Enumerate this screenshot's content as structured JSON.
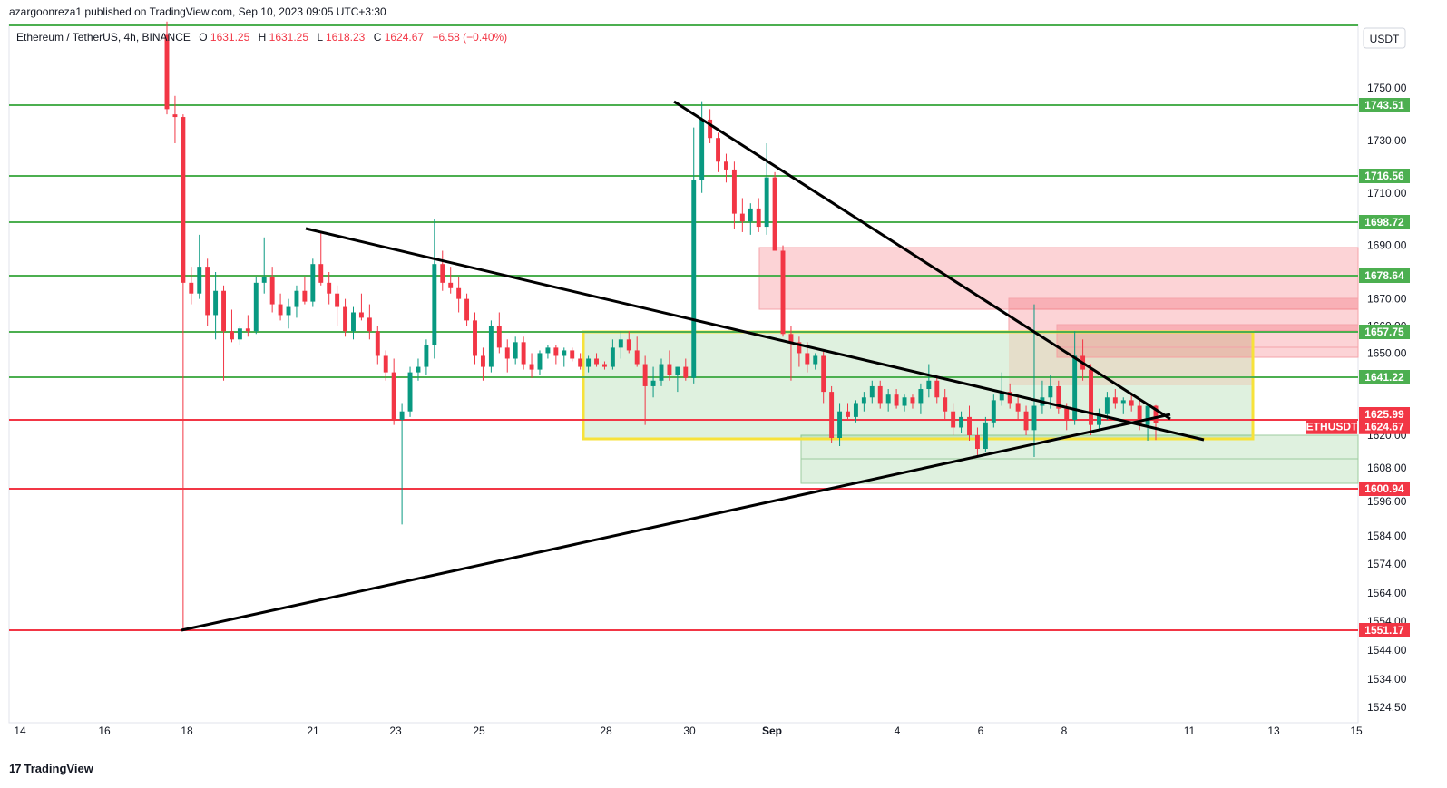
{
  "header": {
    "published_by": "azargoonreza1 published on TradingView.com, Sep 10, 2023 09:05 UTC+3:30"
  },
  "footer": {
    "brand": "TradingView"
  },
  "legend": {
    "symbol": "Ethereum / TetherUS, 4h, BINANCE",
    "o_label": "O",
    "o_value": "1631.25",
    "h_label": "H",
    "h_value": "1631.25",
    "l_label": "L",
    "l_value": "1618.23",
    "c_label": "C",
    "c_value": "1624.67",
    "change": "−6.58 (−0.40%)"
  },
  "currency_button": "USDT",
  "colors": {
    "green_line": "#4caf50",
    "red_line": "#f23645",
    "up_candle": "#089981",
    "down_candle": "#f23645",
    "yellow_box": "#f7e23a",
    "green_zone": "rgba(76,175,80,0.18)",
    "red_zone": "rgba(242,54,69,0.22)"
  },
  "chart_data": {
    "type": "candlestick",
    "title": "Ethereum / TetherUS, 4h, BINANCE",
    "y_axis": {
      "ticks": [
        1750,
        1730,
        1710,
        1690,
        1670,
        1660,
        1650,
        1620,
        1608,
        1596,
        1584,
        1574,
        1564,
        1554,
        1544,
        1534,
        1524.5
      ],
      "tick_labels": [
        "1750.00",
        "1730.00",
        "1710.00",
        "1690.00",
        "1670.00",
        "1660.00",
        "1650.00",
        "1620.00",
        "1608.00",
        "1596.00",
        "1584.00",
        "1574.00",
        "1564.00",
        "1554.00",
        "1544.00",
        "1534.00",
        "1524.50"
      ]
    },
    "x_axis": {
      "tick_labels": [
        "14",
        "16",
        "18",
        "21",
        "23",
        "25",
        "28",
        "30",
        "Sep",
        "4",
        "6",
        "8",
        "11",
        "13",
        "15"
      ]
    },
    "horizontal_levels": [
      {
        "value": 1743.51,
        "label": "1743.51",
        "color": "green"
      },
      {
        "value": 1716.56,
        "label": "1716.56",
        "color": "green"
      },
      {
        "value": 1698.72,
        "label": "1698.72",
        "color": "green"
      },
      {
        "value": 1678.64,
        "label": "1678.64",
        "color": "green"
      },
      {
        "value": 1657.75,
        "label": "1657.75",
        "color": "green"
      },
      {
        "value": 1641.22,
        "label": "1641.22",
        "color": "green"
      },
      {
        "value": 1625.99,
        "label": "1625.99",
        "color": "red"
      },
      {
        "value": 1600.94,
        "label": "1600.94",
        "color": "red"
      },
      {
        "value": 1551.17,
        "label": "1551.17",
        "color": "red"
      }
    ],
    "last_price": {
      "value": 1624.67,
      "label": "1624.67",
      "symbol": "ETHUSDT"
    },
    "candles": [
      [
        1770,
        1775,
        1740,
        1742
      ],
      [
        1740,
        1747,
        1729,
        1739
      ],
      [
        1739,
        1740,
        1551,
        1676
      ],
      [
        1676,
        1682,
        1668,
        1672
      ],
      [
        1672,
        1694,
        1670,
        1682
      ],
      [
        1682,
        1685,
        1660,
        1664
      ],
      [
        1664,
        1680,
        1655,
        1673
      ],
      [
        1673,
        1675,
        1640,
        1658
      ],
      [
        1658,
        1666,
        1654,
        1655
      ],
      [
        1655,
        1660,
        1653,
        1659
      ],
      [
        1659,
        1664,
        1656,
        1658
      ],
      [
        1658,
        1678,
        1657,
        1676
      ],
      [
        1676,
        1693,
        1672,
        1678
      ],
      [
        1678,
        1682,
        1665,
        1668
      ],
      [
        1668,
        1672,
        1662,
        1664
      ],
      [
        1664,
        1670,
        1659,
        1667
      ],
      [
        1667,
        1675,
        1663,
        1673
      ],
      [
        1673,
        1678,
        1668,
        1669
      ],
      [
        1669,
        1685,
        1667,
        1683
      ],
      [
        1683,
        1695,
        1675,
        1676
      ],
      [
        1676,
        1680,
        1668,
        1672
      ],
      [
        1672,
        1675,
        1660,
        1667
      ],
      [
        1667,
        1670,
        1656,
        1658
      ],
      [
        1658,
        1667,
        1655,
        1665
      ],
      [
        1665,
        1672,
        1662,
        1663
      ],
      [
        1663,
        1668,
        1655,
        1658
      ],
      [
        1658,
        1660,
        1646,
        1649
      ],
      [
        1649,
        1651,
        1640,
        1643
      ],
      [
        1643,
        1648,
        1624,
        1626
      ],
      [
        1626,
        1632,
        1588,
        1629
      ],
      [
        1629,
        1645,
        1627,
        1643
      ],
      [
        1643,
        1648,
        1640,
        1645
      ],
      [
        1645,
        1655,
        1642,
        1653
      ],
      [
        1653,
        1700,
        1648,
        1683
      ],
      [
        1683,
        1688,
        1673,
        1676
      ],
      [
        1676,
        1682,
        1672,
        1674
      ],
      [
        1674,
        1678,
        1665,
        1670
      ],
      [
        1670,
        1672,
        1660,
        1662
      ],
      [
        1662,
        1665,
        1646,
        1649
      ],
      [
        1649,
        1652,
        1640,
        1645
      ],
      [
        1645,
        1662,
        1643,
        1660
      ],
      [
        1660,
        1665,
        1650,
        1652
      ],
      [
        1652,
        1655,
        1643,
        1648
      ],
      [
        1648,
        1656,
        1646,
        1654
      ],
      [
        1654,
        1656,
        1644,
        1646
      ],
      [
        1646,
        1650,
        1641,
        1644
      ],
      [
        1644,
        1651,
        1642,
        1650
      ],
      [
        1650,
        1653,
        1648,
        1652
      ],
      [
        1652,
        1653,
        1646,
        1649
      ],
      [
        1649,
        1652,
        1645,
        1651
      ],
      [
        1651,
        1652,
        1647,
        1648
      ],
      [
        1648,
        1650,
        1644,
        1645
      ],
      [
        1645,
        1649,
        1643,
        1648
      ],
      [
        1648,
        1650,
        1645,
        1646
      ],
      [
        1646,
        1647,
        1644,
        1645
      ],
      [
        1645,
        1655,
        1644,
        1652
      ],
      [
        1652,
        1658,
        1648,
        1655
      ],
      [
        1655,
        1658,
        1650,
        1651
      ],
      [
        1651,
        1656,
        1645,
        1646
      ],
      [
        1646,
        1649,
        1624,
        1638
      ],
      [
        1638,
        1645,
        1634,
        1640
      ],
      [
        1640,
        1648,
        1638,
        1646
      ],
      [
        1646,
        1651,
        1640,
        1642
      ],
      [
        1642,
        1645,
        1636,
        1645
      ],
      [
        1645,
        1648,
        1640,
        1641
      ],
      [
        1641,
        1735,
        1639,
        1715
      ],
      [
        1715,
        1745,
        1710,
        1738
      ],
      [
        1738,
        1742,
        1729,
        1731
      ],
      [
        1731,
        1733,
        1718,
        1722
      ],
      [
        1722,
        1725,
        1714,
        1719
      ],
      [
        1719,
        1722,
        1696,
        1702
      ],
      [
        1702,
        1708,
        1695,
        1699
      ],
      [
        1699,
        1706,
        1694,
        1704
      ],
      [
        1704,
        1708,
        1695,
        1697
      ],
      [
        1697,
        1729,
        1694,
        1716
      ],
      [
        1716,
        1718,
        1690,
        1688
      ],
      [
        1688,
        1690,
        1656,
        1657
      ],
      [
        1657,
        1660,
        1640,
        1654
      ],
      [
        1654,
        1656,
        1645,
        1650
      ],
      [
        1650,
        1654,
        1643,
        1646
      ],
      [
        1646,
        1650,
        1644,
        1649
      ],
      [
        1649,
        1651,
        1632,
        1636
      ],
      [
        1636,
        1638,
        1617,
        1619
      ],
      [
        1619,
        1632,
        1616,
        1629
      ],
      [
        1629,
        1632,
        1626,
        1627
      ],
      [
        1627,
        1633,
        1625,
        1632
      ],
      [
        1632,
        1636,
        1629,
        1634
      ],
      [
        1634,
        1640,
        1632,
        1638
      ],
      [
        1638,
        1640,
        1630,
        1632
      ],
      [
        1632,
        1637,
        1629,
        1635
      ],
      [
        1635,
        1637,
        1630,
        1631
      ],
      [
        1631,
        1635,
        1629,
        1634
      ],
      [
        1634,
        1635,
        1630,
        1632
      ],
      [
        1632,
        1639,
        1628,
        1637
      ],
      [
        1637,
        1646,
        1634,
        1640
      ],
      [
        1640,
        1642,
        1632,
        1634
      ],
      [
        1634,
        1637,
        1626,
        1629
      ],
      [
        1629,
        1632,
        1620,
        1623
      ],
      [
        1623,
        1629,
        1621,
        1627
      ],
      [
        1627,
        1631,
        1618,
        1620
      ],
      [
        1620,
        1623,
        1612,
        1615
      ],
      [
        1615,
        1627,
        1614,
        1625
      ],
      [
        1625,
        1635,
        1623,
        1633
      ],
      [
        1633,
        1643,
        1631,
        1636
      ],
      [
        1636,
        1639,
        1630,
        1632
      ],
      [
        1632,
        1635,
        1626,
        1629
      ],
      [
        1629,
        1631,
        1620,
        1622
      ],
      [
        1622,
        1668,
        1612,
        1631
      ],
      [
        1631,
        1640,
        1628,
        1634
      ],
      [
        1634,
        1642,
        1630,
        1638
      ],
      [
        1638,
        1640,
        1628,
        1630
      ],
      [
        1630,
        1632,
        1622,
        1626
      ],
      [
        1626,
        1658,
        1624,
        1649
      ],
      [
        1649,
        1655,
        1640,
        1644
      ],
      [
        1644,
        1646,
        1620,
        1624
      ],
      [
        1624,
        1630,
        1622,
        1628
      ],
      [
        1628,
        1636,
        1626,
        1634
      ],
      [
        1634,
        1637,
        1630,
        1632
      ],
      [
        1632,
        1634,
        1628,
        1633
      ],
      [
        1633,
        1635,
        1629,
        1631
      ],
      [
        1631,
        1633,
        1622,
        1624
      ],
      [
        1624,
        1631,
        1618,
        1631
      ],
      [
        1631,
        1631.25,
        1618.23,
        1624.67
      ]
    ],
    "trendlines": "three black lines forming converging wedge; rectangles for supply (red) and demand (green) zones; yellow range box",
    "grid": false,
    "legend_position": "top-left"
  }
}
